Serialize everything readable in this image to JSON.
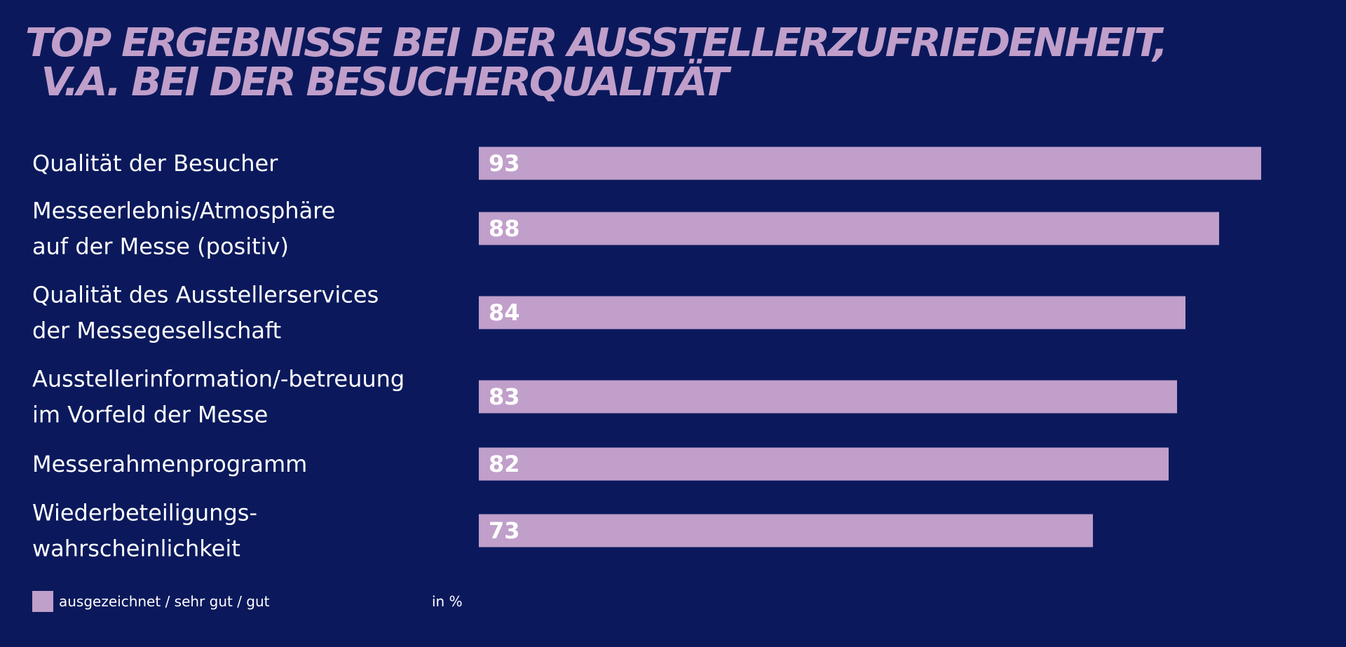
{
  "title_lines": [
    "TOP ERGEBNISSE BEI DER AUSSTELLERZUFRIEDENHEIT,",
    "V.A. BEI DER BESUCHERQUALITÄT"
  ],
  "colors": {
    "background": "#0b195c",
    "bar": "#c09fca",
    "title": "#c09fca",
    "text": "#ffffff"
  },
  "chart_data": {
    "type": "bar",
    "orientation": "horizontal",
    "title": "TOP ERGEBNISSE BEI DER AUSSTELLERZUFRIEDENHEIT, V.A. BEI DER BESUCHERQUALITÄT",
    "categories": [
      [
        "Qualität der Besucher"
      ],
      [
        "Messeerlebnis/Atmosphäre",
        "auf der Messe (positiv)"
      ],
      [
        "Qualität des Ausstellerservices",
        "der Messegesellschaft"
      ],
      [
        "Ausstellerinformation/-betreuung",
        "im Vorfeld der Messe"
      ],
      [
        "Messerahmenprogramm"
      ],
      [
        "Wiederbeteiligungs-",
        "wahrscheinlichkeit"
      ]
    ],
    "series": [
      {
        "name": "ausgezeichnet / sehr gut / gut",
        "values": [
          93,
          88,
          84,
          83,
          82,
          73
        ]
      }
    ],
    "xlim": [
      0,
      100
    ],
    "unit": "in %",
    "legend_position": "bottom-left",
    "grid": false
  }
}
